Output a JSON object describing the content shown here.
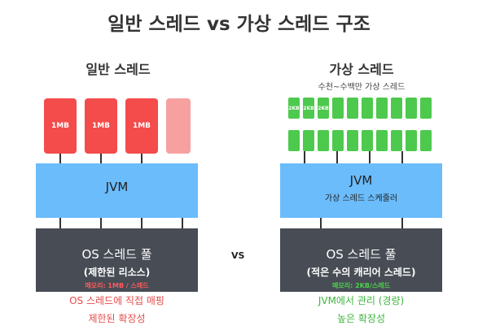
{
  "title": "일반 스레드 vs 가상 스레드 구조",
  "left": {
    "heading": "일반 스레드",
    "threads": [
      "1MB",
      "1MB",
      "1MB",
      ""
    ],
    "jvm": {
      "name": "JVM"
    },
    "os": {
      "name": "OS 스레드 풀",
      "sub": "(제한된 리소스)",
      "memory": "메모리: 1MB / 스레드"
    },
    "notes": [
      "OS 스레드에 직접 매핑",
      "제한된 확장성"
    ],
    "color": "#f44b4b"
  },
  "right": {
    "heading": "가상 스레드",
    "subheading": "수천~수백만 가상 스레드",
    "threads_row1": [
      "2KB",
      "2KB",
      "2KB",
      "",
      "",
      "",
      "",
      "",
      "",
      ""
    ],
    "threads_row2": [
      "",
      "",
      "",
      "",
      "",
      "",
      "",
      "",
      "",
      ""
    ],
    "jvm": {
      "name": "JVM",
      "sub": "가상 스레드 스케줄러"
    },
    "os": {
      "name": "OS 스레드 풀",
      "sub": "(적은 수의 캐리어 스레드)",
      "memory": "메모리: 2KB/스레드"
    },
    "notes": [
      "JVM에서 관리 (경량)",
      "높은 확장성"
    ],
    "color": "#4dc94d"
  },
  "vs_label": "VS"
}
